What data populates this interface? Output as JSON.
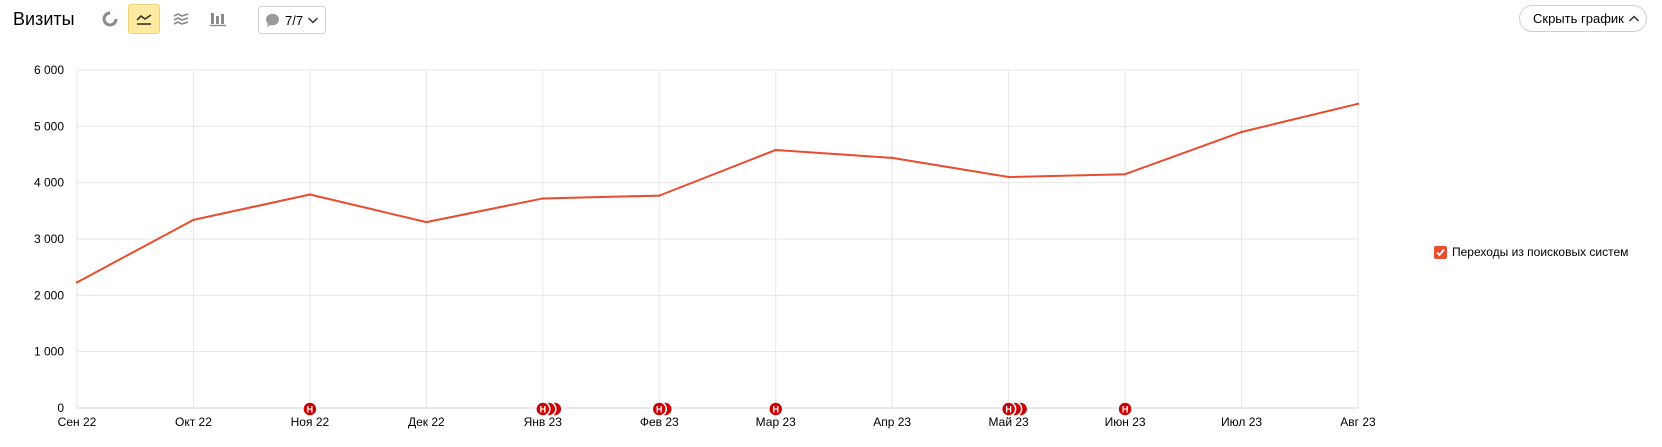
{
  "toolbar": {
    "title": "Визиты",
    "buttons": [
      {
        "icon": "pie-chart-icon",
        "active": false
      },
      {
        "icon": "line-chart-icon",
        "active": true
      },
      {
        "icon": "area-chart-icon",
        "active": false
      },
      {
        "icon": "bar-chart-icon",
        "active": false
      }
    ],
    "notes_label": "7/7",
    "hide_chart_label": "Скрыть график"
  },
  "colors": {
    "series": "#e94c2e",
    "active_button": "#ffeba0",
    "note_marker": "#cc0000",
    "grid": "#e6e6e6"
  },
  "legend": {
    "label": "Переходы из поисковых систем",
    "checked": true
  },
  "note_marker_letter": "Н",
  "chart_data": {
    "type": "line",
    "categories": [
      "Сен 22",
      "Окт 22",
      "Ноя 22",
      "Дек 22",
      "Янв 23",
      "Фев 23",
      "Мар 23",
      "Апр 23",
      "Май 23",
      "Июн 23",
      "Июл 23",
      "Авг 23"
    ],
    "series": [
      {
        "name": "Переходы из поисковых систем",
        "values": [
          2230,
          3340,
          3790,
          3300,
          3720,
          3770,
          4580,
          4440,
          4100,
          4150,
          4900,
          5400
        ]
      }
    ],
    "ylim": [
      0,
      6000
    ],
    "yticks": [
      0,
      1000,
      2000,
      3000,
      4000,
      5000,
      6000
    ],
    "ytick_labels": [
      "0",
      "1 000",
      "2 000",
      "3 000",
      "4 000",
      "5 000",
      "6 000"
    ],
    "grid": true,
    "legend_position": "right",
    "notes": [
      {
        "category": "Ноя 22",
        "count": 1
      },
      {
        "category": "Янв 23",
        "count": 3
      },
      {
        "category": "Фев 23",
        "count": 2
      },
      {
        "category": "Мар 23",
        "count": 1
      },
      {
        "category": "Май 23",
        "count": 3
      },
      {
        "category": "Июн 23",
        "count": 1
      }
    ]
  }
}
